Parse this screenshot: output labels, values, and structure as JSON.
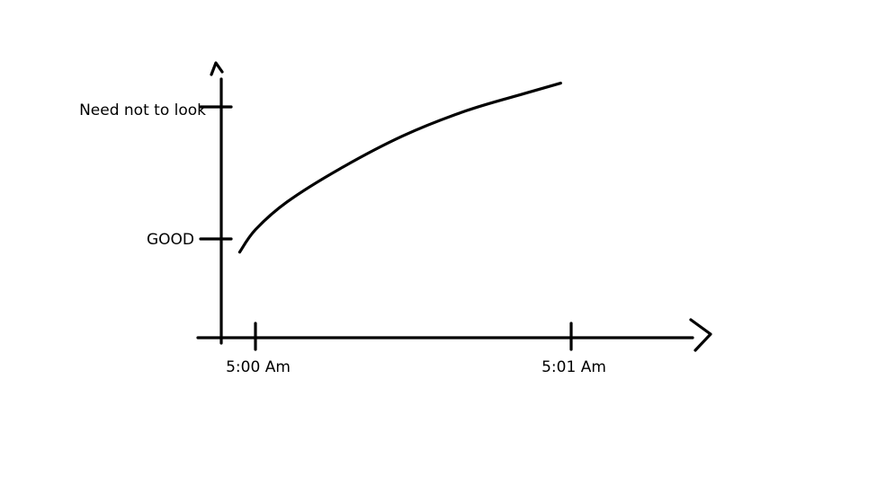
{
  "chart_data": {
    "type": "line",
    "title": "",
    "xlabel": "",
    "ylabel": "",
    "x_ticks": [
      {
        "value": "5:00:00",
        "label": "5:00 Am"
      },
      {
        "value": "5:01:00",
        "label": "5:01 Am"
      }
    ],
    "y_ticks": [
      {
        "value": 1,
        "label": "GOOD"
      },
      {
        "value": 2,
        "label": "Need not to look"
      }
    ],
    "xlim": [
      "4:59:54",
      "5:01:23"
    ],
    "ylim": [
      0.25,
      2.33
    ],
    "grid": false,
    "style": "hand-drawn",
    "color": "#000000",
    "series": [
      {
        "x": [
          "4:59:57",
          "5:00:00",
          "5:00:06",
          "5:00:16",
          "5:00:28",
          "5:00:40",
          "5:00:51",
          "5:00:58"
        ],
        "y": [
          0.9,
          1.07,
          1.28,
          1.53,
          1.78,
          1.97,
          2.1,
          2.18
        ]
      }
    ]
  }
}
